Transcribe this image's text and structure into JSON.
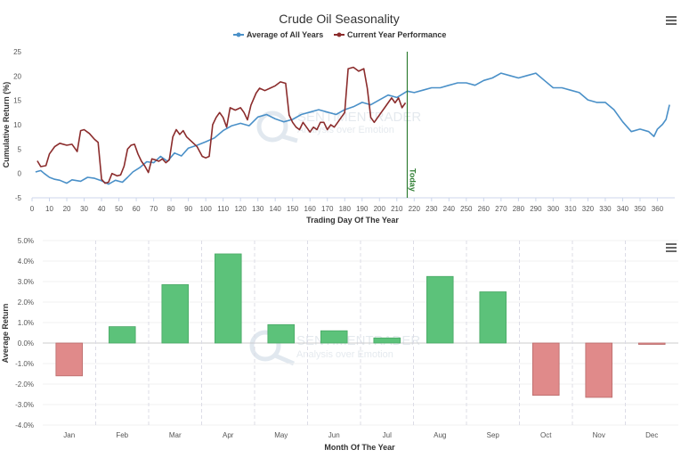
{
  "top": {
    "menu_icon": "hamburger-menu-icon",
    "chart_data": {
      "type": "line",
      "title": "Crude Oil Seasonality",
      "xlabel": "Trading Day Of The Year",
      "ylabel": "Cumulative Return (%)",
      "xlim": [
        0,
        370
      ],
      "ylim": [
        -5,
        25
      ],
      "x_ticks": [
        0,
        10,
        20,
        30,
        40,
        50,
        60,
        70,
        80,
        90,
        100,
        110,
        120,
        130,
        140,
        150,
        160,
        170,
        180,
        190,
        200,
        210,
        220,
        230,
        240,
        250,
        260,
        270,
        280,
        290,
        300,
        310,
        320,
        330,
        340,
        350,
        360
      ],
      "y_ticks": [
        -5,
        0,
        5,
        10,
        15,
        20,
        25
      ],
      "today_marker": {
        "x": 216,
        "label": "Today",
        "color": "#2e7d32"
      },
      "series": [
        {
          "name": "Average of All Years",
          "color": "#4a90c8",
          "points": [
            [
              2,
              0.3
            ],
            [
              5,
              0.6
            ],
            [
              7,
              0
            ],
            [
              10,
              -0.8
            ],
            [
              13,
              -1.2
            ],
            [
              16,
              -1.4
            ],
            [
              20,
              -2.0
            ],
            [
              23,
              -1.3
            ],
            [
              28,
              -1.6
            ],
            [
              32,
              -0.8
            ],
            [
              36,
              -1.0
            ],
            [
              40,
              -1.5
            ],
            [
              44,
              -2.2
            ],
            [
              48,
              -1.4
            ],
            [
              52,
              -1.8
            ],
            [
              55,
              -0.8
            ],
            [
              58,
              0.3
            ],
            [
              62,
              1.2
            ],
            [
              66,
              2.4
            ],
            [
              70,
              2.2
            ],
            [
              74,
              3.5
            ],
            [
              78,
              2.5
            ],
            [
              82,
              4.2
            ],
            [
              86,
              3.6
            ],
            [
              90,
              5.2
            ],
            [
              95,
              5.8
            ],
            [
              100,
              6.5
            ],
            [
              105,
              7.3
            ],
            [
              110,
              8.8
            ],
            [
              115,
              9.8
            ],
            [
              120,
              10.3
            ],
            [
              125,
              9.8
            ],
            [
              130,
              11.6
            ],
            [
              135,
              12.1
            ],
            [
              140,
              11.2
            ],
            [
              145,
              10.6
            ],
            [
              150,
              11.1
            ],
            [
              155,
              12.1
            ],
            [
              160,
              12.6
            ],
            [
              165,
              13.1
            ],
            [
              170,
              12.6
            ],
            [
              175,
              12.1
            ],
            [
              180,
              13.1
            ],
            [
              185,
              13.7
            ],
            [
              190,
              14.6
            ],
            [
              195,
              14.1
            ],
            [
              200,
              15.1
            ],
            [
              205,
              16.1
            ],
            [
              210,
              15.6
            ],
            [
              216,
              16.9
            ],
            [
              220,
              16.6
            ],
            [
              225,
              17.1
            ],
            [
              230,
              17.6
            ],
            [
              235,
              17.6
            ],
            [
              240,
              18.1
            ],
            [
              245,
              18.6
            ],
            [
              250,
              18.6
            ],
            [
              255,
              18.1
            ],
            [
              260,
              19.1
            ],
            [
              265,
              19.6
            ],
            [
              270,
              20.6
            ],
            [
              275,
              20.1
            ],
            [
              280,
              19.6
            ],
            [
              285,
              20.1
            ],
            [
              290,
              20.6
            ],
            [
              295,
              19.1
            ],
            [
              300,
              17.6
            ],
            [
              305,
              17.6
            ],
            [
              310,
              17.1
            ],
            [
              315,
              16.6
            ],
            [
              320,
              15.1
            ],
            [
              325,
              14.6
            ],
            [
              330,
              14.6
            ],
            [
              335,
              13.1
            ],
            [
              340,
              10.6
            ],
            [
              345,
              8.6
            ],
            [
              350,
              9.1
            ],
            [
              355,
              8.6
            ],
            [
              358,
              7.6
            ],
            [
              360,
              9.1
            ],
            [
              363,
              10.1
            ],
            [
              365,
              11.1
            ],
            [
              367,
              14.1
            ]
          ]
        },
        {
          "name": "Current Year Performance",
          "color": "#8b2c2c",
          "points": [
            [
              3,
              2.6
            ],
            [
              5,
              1.4
            ],
            [
              8,
              1.6
            ],
            [
              10,
              4.0
            ],
            [
              13,
              5.5
            ],
            [
              16,
              6.2
            ],
            [
              20,
              5.8
            ],
            [
              23,
              6.0
            ],
            [
              26,
              4.5
            ],
            [
              28,
              8.8
            ],
            [
              30,
              9.0
            ],
            [
              33,
              8.2
            ],
            [
              36,
              7.0
            ],
            [
              38,
              6.4
            ],
            [
              40,
              -1.2
            ],
            [
              42,
              -2.0
            ],
            [
              44,
              -1.8
            ],
            [
              46,
              0.0
            ],
            [
              49,
              -0.5
            ],
            [
              51,
              -0.3
            ],
            [
              53,
              1.5
            ],
            [
              55,
              5.0
            ],
            [
              57,
              5.8
            ],
            [
              59,
              6.0
            ],
            [
              61,
              4.0
            ],
            [
              63,
              2.5
            ],
            [
              65,
              1.5
            ],
            [
              67,
              0.2
            ],
            [
              69,
              3.0
            ],
            [
              71,
              2.8
            ],
            [
              73,
              2.5
            ],
            [
              75,
              3.0
            ],
            [
              77,
              2.2
            ],
            [
              79,
              2.8
            ],
            [
              81,
              7.5
            ],
            [
              83,
              9.0
            ],
            [
              85,
              8.0
            ],
            [
              87,
              8.8
            ],
            [
              89,
              7.5
            ],
            [
              92,
              6.5
            ],
            [
              95,
              5.5
            ],
            [
              98,
              3.5
            ],
            [
              100,
              3.2
            ],
            [
              102,
              3.5
            ],
            [
              104,
              10.0
            ],
            [
              106,
              11.5
            ],
            [
              108,
              12.5
            ],
            [
              110,
              11.5
            ],
            [
              112,
              9.5
            ],
            [
              114,
              13.5
            ],
            [
              117,
              13.0
            ],
            [
              120,
              13.5
            ],
            [
              122,
              12.5
            ],
            [
              124,
              11.0
            ],
            [
              126,
              14.0
            ],
            [
              129,
              16.5
            ],
            [
              131,
              17.5
            ],
            [
              134,
              17.0
            ],
            [
              137,
              17.5
            ],
            [
              140,
              18.0
            ],
            [
              143,
              18.8
            ],
            [
              146,
              18.5
            ],
            [
              148,
              12.0
            ],
            [
              150,
              10.5
            ],
            [
              152,
              9.5
            ],
            [
              154,
              9.0
            ],
            [
              156,
              10.5
            ],
            [
              158,
              9.5
            ],
            [
              160,
              8.5
            ],
            [
              162,
              9.5
            ],
            [
              164,
              9.0
            ],
            [
              166,
              10.5
            ],
            [
              168,
              10.5
            ],
            [
              170,
              9.0
            ],
            [
              172,
              10.0
            ],
            [
              174,
              9.5
            ],
            [
              176,
              10.5
            ],
            [
              178,
              11.5
            ],
            [
              180,
              12.5
            ],
            [
              182,
              21.5
            ],
            [
              185,
              21.8
            ],
            [
              188,
              21.0
            ],
            [
              191,
              21.5
            ],
            [
              193,
              17.5
            ],
            [
              195,
              11.5
            ],
            [
              197,
              10.5
            ],
            [
              199,
              11.5
            ],
            [
              201,
              12.5
            ],
            [
              203,
              13.5
            ],
            [
              205,
              14.5
            ],
            [
              207,
              15.5
            ],
            [
              209,
              14.5
            ],
            [
              211,
              15.5
            ],
            [
              213,
              13.5
            ],
            [
              215,
              14.5
            ]
          ]
        }
      ]
    }
  },
  "bottom": {
    "menu_icon": "hamburger-menu-icon",
    "chart_data": {
      "type": "bar",
      "xlabel": "Month Of The Year",
      "ylabel": "Average Return",
      "ylim": [
        -4.0,
        5.0
      ],
      "y_ticks": [
        -4.0,
        -3.0,
        -2.0,
        -1.0,
        0.0,
        1.0,
        2.0,
        3.0,
        4.0,
        5.0
      ],
      "y_tick_labels": [
        "-4.0%",
        "-3.0%",
        "-2.0%",
        "-1.0%",
        "0.0%",
        "1.0%",
        "2.0%",
        "3.0%",
        "4.0%",
        "5.0%"
      ],
      "categories": [
        "Jan",
        "Feb",
        "Mar",
        "Apr",
        "May",
        "Jun",
        "Jul",
        "Aug",
        "Sep",
        "Oct",
        "Nov",
        "Dec"
      ],
      "values": [
        -1.6,
        0.8,
        2.85,
        4.35,
        0.9,
        0.6,
        0.25,
        3.25,
        2.5,
        -2.55,
        -2.65,
        -0.05
      ],
      "positive_color": "#5cc27a",
      "negative_color": "#e08a8a"
    }
  },
  "watermark": {
    "brand": "SENTIMENTRADER",
    "tagline": "Analysis over Emotion"
  }
}
